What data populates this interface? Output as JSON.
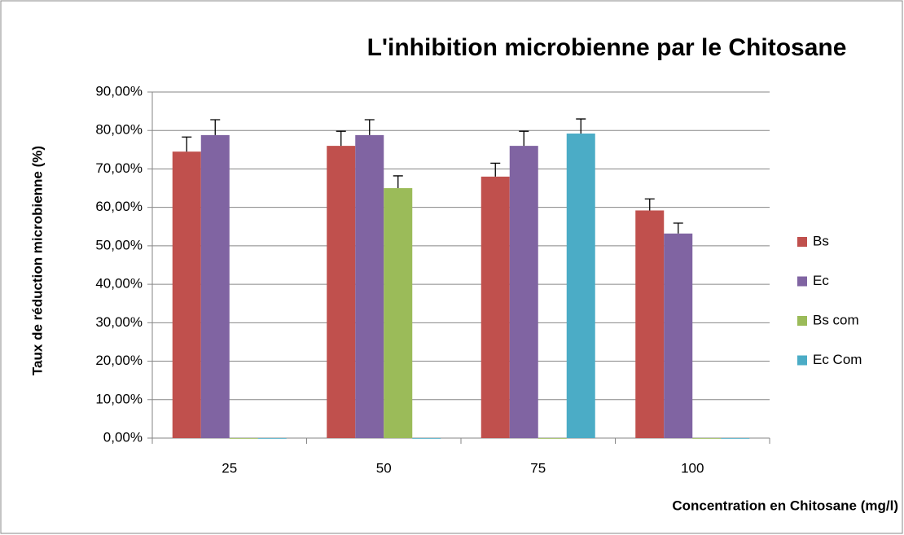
{
  "chart_data": {
    "type": "bar",
    "title": "L'inhibition microbienne par le Chitosane",
    "y_label": "Taux de réduction microbienne (%)",
    "x_label": "Concentration en Chitosane (mg/l)",
    "categories": [
      "25",
      "50",
      "75",
      "100"
    ],
    "series": [
      {
        "name": "Bs",
        "color": "#c0504d",
        "values": [
          74.5,
          76,
          68,
          59.2
        ],
        "errors": [
          3.8,
          3.8,
          3.5,
          3
        ]
      },
      {
        "name": "Ec",
        "color": "#8064a2",
        "values": [
          78.8,
          78.8,
          76,
          53.2
        ],
        "errors": [
          4,
          4,
          3.8,
          2.7
        ]
      },
      {
        "name": "Bs com",
        "color": "#9bbb59",
        "values": [
          0,
          65,
          0,
          0
        ],
        "errors": [
          null,
          3.2,
          null,
          null
        ]
      },
      {
        "name": "Ec Com",
        "color": "#4bacc6",
        "values": [
          0,
          0,
          79.2,
          0
        ],
        "errors": [
          null,
          null,
          3.8,
          null
        ]
      }
    ],
    "ylim": [
      0,
      90
    ],
    "yticks": [
      {
        "value": 0,
        "label": "0,00%"
      },
      {
        "value": 10,
        "label": "10,00%"
      },
      {
        "value": 20,
        "label": "20,00%"
      },
      {
        "value": 30,
        "label": "30,00%"
      },
      {
        "value": 40,
        "label": "40,00%"
      },
      {
        "value": 50,
        "label": "50,00%"
      },
      {
        "value": 60,
        "label": "60,00%"
      },
      {
        "value": 70,
        "label": "70,00%"
      },
      {
        "value": 80,
        "label": "80,00%"
      },
      {
        "value": 90,
        "label": "90,00%"
      }
    ],
    "grid": true,
    "legend": "right"
  }
}
